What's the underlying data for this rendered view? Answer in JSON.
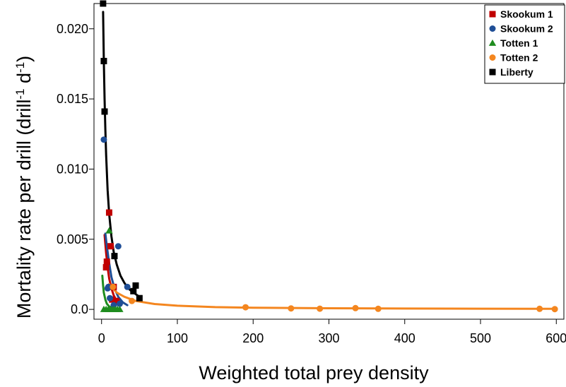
{
  "chart_data": {
    "type": "scatter",
    "xlabel": "Weighted total prey density",
    "ylabel_main": "Mortality rate per drill (drill",
    "ylabel_sup1": "-1",
    "ylabel_mid": " d",
    "ylabel_sup2": "-1",
    "ylabel_end": ")",
    "xlim": [
      -10,
      610
    ],
    "ylim": [
      -0.0007,
      0.0218
    ],
    "xticks": [
      0,
      100,
      200,
      300,
      400,
      500,
      600
    ],
    "yticks": [
      0.0,
      0.005,
      0.01,
      0.015,
      0.02
    ],
    "ytick_labels": [
      "0.0",
      "0.005",
      "0.010",
      "0.015",
      "0.020"
    ],
    "legend_position": "top-right",
    "series": [
      {
        "name": "Skookum 1",
        "marker": "square",
        "color": "#c00000",
        "points": [
          [
            10,
            0.0069
          ],
          [
            12,
            0.0045
          ],
          [
            7,
            0.0034
          ],
          [
            6,
            0.003
          ],
          [
            16,
            0.0016
          ],
          [
            19,
            0.0006
          ],
          [
            20,
            0.0005
          ],
          [
            14,
            0.0007
          ]
        ],
        "curve": [
          [
            4,
            0.0053
          ],
          [
            6,
            0.004
          ],
          [
            8,
            0.003
          ],
          [
            10,
            0.0022
          ],
          [
            13,
            0.0015
          ],
          [
            16,
            0.001
          ],
          [
            20,
            0.0006
          ],
          [
            25,
            0.0004
          ]
        ]
      },
      {
        "name": "Skookum 2",
        "marker": "circle",
        "color": "#1f4e96",
        "points": [
          [
            3,
            0.0121
          ],
          [
            22,
            0.0045
          ],
          [
            34,
            0.0016
          ],
          [
            9,
            0.0016
          ],
          [
            11,
            0.0008
          ],
          [
            8,
            0.0015
          ],
          [
            24,
            0.0004
          ],
          [
            16,
            0.0003
          ]
        ],
        "curve": [
          [
            5,
            0.0054
          ],
          [
            7,
            0.0045
          ],
          [
            10,
            0.0033
          ],
          [
            13,
            0.0023
          ],
          [
            17,
            0.0015
          ],
          [
            22,
            0.0009
          ],
          [
            28,
            0.0005
          ],
          [
            34,
            0.0003
          ]
        ]
      },
      {
        "name": "Totten 1",
        "marker": "triangle",
        "color": "#1e8c1e",
        "points": [
          [
            10,
            0.0056
          ],
          [
            3,
            0.0
          ],
          [
            6,
            0.0
          ],
          [
            9,
            0.0
          ],
          [
            12,
            0.0
          ],
          [
            15,
            0.0
          ],
          [
            18,
            0.0
          ],
          [
            21,
            0.0
          ],
          [
            24,
            0.0
          ]
        ],
        "curve": [
          [
            1,
            0.0024
          ],
          [
            2,
            0.0017
          ],
          [
            3,
            0.0012
          ],
          [
            5,
            0.0007
          ],
          [
            7,
            0.0004
          ],
          [
            10,
            0.0002
          ],
          [
            15,
            0.0001
          ],
          [
            20,
            5e-05
          ]
        ]
      },
      {
        "name": "Totten 2",
        "marker": "circle",
        "color": "#f4861f",
        "points": [
          [
            15,
            0.0016
          ],
          [
            40,
            0.0006
          ],
          [
            190,
            0.00015
          ],
          [
            250,
            7e-05
          ],
          [
            288,
            5e-05
          ],
          [
            335,
            9e-05
          ],
          [
            365,
            4e-05
          ],
          [
            578,
            4e-05
          ],
          [
            598,
            2e-05
          ]
        ],
        "curve": [
          [
            10,
            0.0018
          ],
          [
            15,
            0.0015
          ],
          [
            20,
            0.0012
          ],
          [
            30,
            0.0009
          ],
          [
            45,
            0.0006
          ],
          [
            70,
            0.00038
          ],
          [
            100,
            0.00026
          ],
          [
            150,
            0.00016
          ],
          [
            200,
            0.00012
          ],
          [
            300,
            8e-05
          ],
          [
            400,
            6e-05
          ],
          [
            500,
            5e-05
          ],
          [
            600,
            4e-05
          ]
        ]
      },
      {
        "name": "Liberty",
        "marker": "square",
        "color": "#000000",
        "points": [
          [
            2,
            0.0218
          ],
          [
            3,
            0.0177
          ],
          [
            4,
            0.0141
          ],
          [
            17,
            0.0038
          ],
          [
            42,
            0.0013
          ],
          [
            45,
            0.0017
          ],
          [
            50,
            0.0008
          ]
        ],
        "curve": [
          [
            2,
            0.0212
          ],
          [
            3,
            0.0178
          ],
          [
            4,
            0.015
          ],
          [
            5,
            0.0128
          ],
          [
            6,
            0.011
          ],
          [
            8,
            0.0085
          ],
          [
            10,
            0.0068
          ],
          [
            13,
            0.0052
          ],
          [
            16,
            0.0041
          ],
          [
            20,
            0.0032
          ],
          [
            25,
            0.0024
          ],
          [
            30,
            0.0019
          ],
          [
            35,
            0.0015
          ],
          [
            42,
            0.0012
          ],
          [
            50,
            0.0009
          ]
        ]
      }
    ]
  }
}
